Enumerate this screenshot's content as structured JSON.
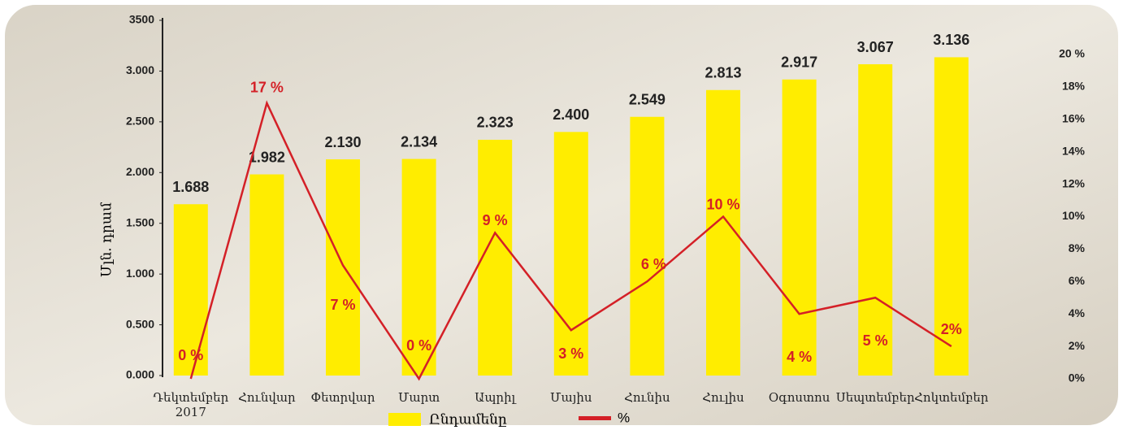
{
  "chart_data": {
    "type": "bar-line",
    "y_label": "Մլն. դրամ",
    "categories": [
      "Դեկտեմբեր 2017",
      "Հունվար",
      "Փետրվար",
      "Մարտ",
      "Ապրիլ",
      "Մայիս",
      "Հունիս",
      "Հուլիս",
      "Օգոստոս",
      "Սեպտեմբեր",
      "Հոկտեմբեր"
    ],
    "series": [
      {
        "name": "Ընդամենը",
        "type": "bar",
        "color": "#ffed00",
        "values": [
          1688,
          1982,
          2130,
          2134,
          2323,
          2400,
          2549,
          2813,
          2917,
          3067,
          3136
        ],
        "value_labels": [
          "1.688",
          "1.982",
          "2.130",
          "2.134",
          "2.323",
          "2.400",
          "2.549",
          "2.813",
          "2.917",
          "3.067",
          "3.136"
        ]
      },
      {
        "name": "%",
        "type": "line",
        "axis": "y2",
        "color": "#d42027",
        "values": [
          0,
          17,
          7,
          0,
          9,
          3,
          6,
          10,
          4,
          5,
          2
        ],
        "value_labels": [
          "0 %",
          "17 %",
          "7 %",
          "0 %",
          "9 %",
          "3 %",
          "6 %",
          "10 %",
          "4 %",
          "5 %",
          "2%"
        ]
      }
    ],
    "ylim": [
      0,
      3500
    ],
    "yticks": [
      {
        "value": 0,
        "label": "0.000"
      },
      {
        "value": 500,
        "label": "0.500"
      },
      {
        "value": 1000,
        "label": "1.000"
      },
      {
        "value": 1500,
        "label": "1.500"
      },
      {
        "value": 2000,
        "label": "2.000"
      },
      {
        "value": 2500,
        "label": "2.500"
      },
      {
        "value": 3000,
        "label": "3.000"
      },
      3500
    ],
    "y2lim": [
      0,
      20
    ],
    "y2ticks": [
      {
        "value": 0,
        "label": "0%"
      },
      {
        "value": 2,
        "label": "2%"
      },
      {
        "value": 4,
        "label": "4%"
      },
      {
        "value": 6,
        "label": "6%"
      },
      {
        "value": 8,
        "label": "8%"
      },
      {
        "value": 10,
        "label": "10%"
      },
      {
        "value": 12,
        "label": "12%"
      },
      {
        "value": 14,
        "label": "14%"
      },
      {
        "value": 16,
        "label": "16%"
      },
      {
        "value": 18,
        "label": "18%"
      },
      {
        "value": 20,
        "label": "20 %"
      }
    ]
  }
}
